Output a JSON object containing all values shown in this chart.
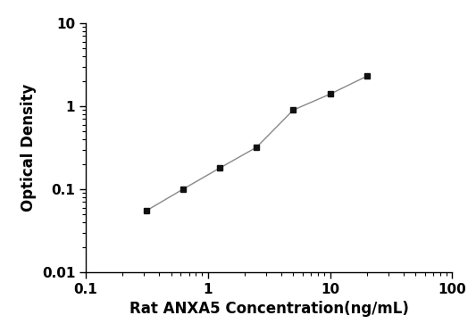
{
  "x_values": [
    0.313,
    0.625,
    1.25,
    2.5,
    5.0,
    10.0,
    20.0
  ],
  "y_values": [
    0.055,
    0.1,
    0.18,
    0.32,
    0.9,
    1.4,
    2.3
  ],
  "xlabel": "Rat ANXA5 Concentration(ng/mL)",
  "ylabel": "Optical Density",
  "xlim": [
    0.1,
    100
  ],
  "ylim": [
    0.01,
    10
  ],
  "line_color": "#888888",
  "marker_color": "#111111",
  "marker": "s",
  "marker_size": 5,
  "line_width": 1.0,
  "background_color": "#ffffff",
  "xlabel_fontsize": 12,
  "ylabel_fontsize": 12,
  "tick_fontsize": 11,
  "xtick_labels": {
    "0.1": "0.1",
    "1": "1",
    "10": "10",
    "100": "100"
  },
  "ytick_labels": {
    "0.01": "0.01",
    "0.1": "0.1",
    "1": "1",
    "10": "10"
  }
}
